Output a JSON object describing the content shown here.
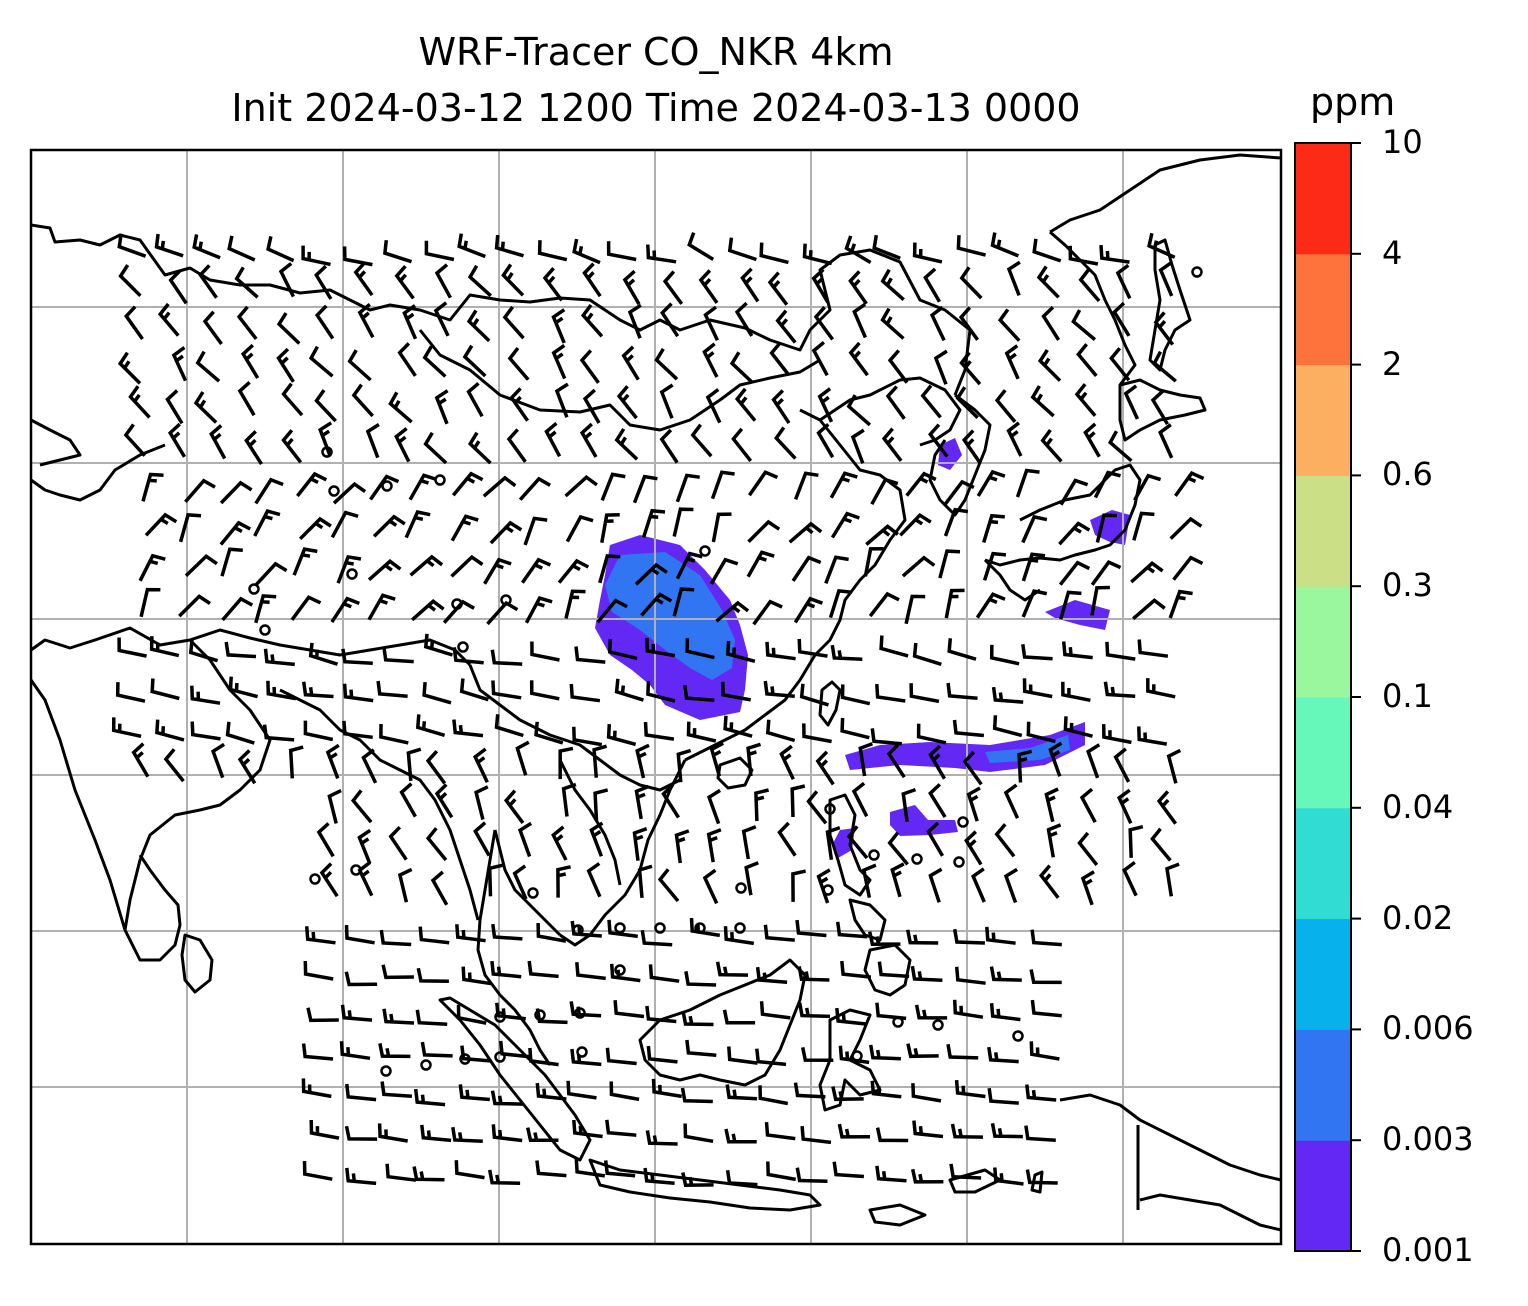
{
  "title": {
    "line1": "WRF-Tracer CO_NKR 4km",
    "line2": "Init 2024-03-12 1200 Time 2024-03-13 0000"
  },
  "colorbar": {
    "unit": "ppm",
    "ticks": [
      "0.001",
      "0.003",
      "0.006",
      "0.02",
      "0.04",
      "0.1",
      "0.3",
      "0.6",
      "2",
      "4",
      "10"
    ],
    "colors": [
      "#6428f5",
      "#3275f3",
      "#07b1ec",
      "#31dcd3",
      "#66f8bb",
      "#9af79e",
      "#cbe086",
      "#fcaf61",
      "#fe723c",
      "#fd2a18"
    ]
  },
  "map": {
    "gridlines": true,
    "plume_colors": [
      "#6428f5",
      "#3275f3"
    ]
  }
}
